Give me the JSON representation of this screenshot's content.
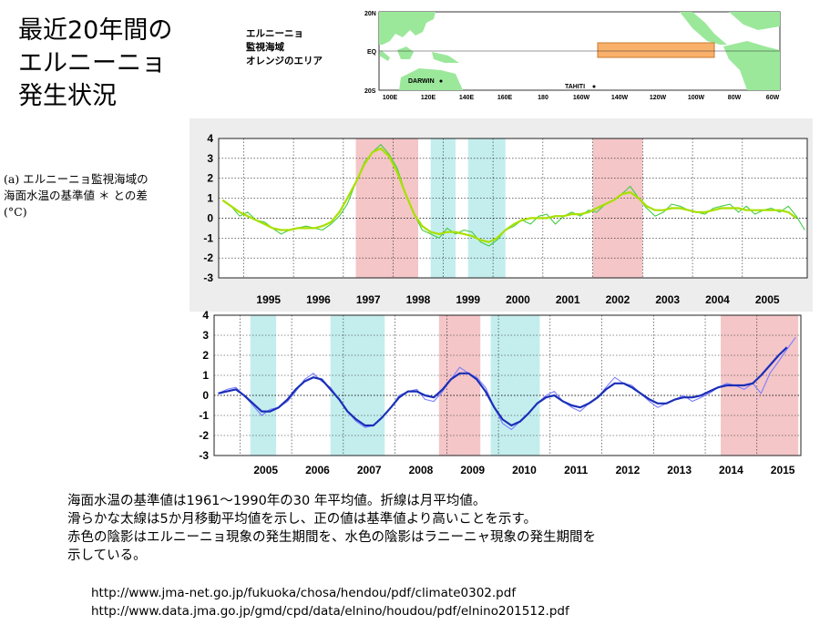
{
  "title": {
    "line1": "最近20年間の",
    "line2": "エルニーニョ",
    "line3": "発生状況"
  },
  "map": {
    "caption_line1": "エルニーニョ",
    "caption_line2": "監視海域",
    "caption_line3": "オレンジのエリア",
    "lat_labels": [
      "20N",
      "EQ",
      "20S"
    ],
    "lon_labels": [
      "100E",
      "120E",
      "140E",
      "160E",
      "180",
      "160W",
      "140W",
      "120W",
      "100W",
      "80W",
      "60W"
    ],
    "place_darwin": "DARWIN",
    "place_tahiti": "TAHITI",
    "region_color": "#f9b06a",
    "land_color": "#9be89b"
  },
  "ylabel": {
    "line1": "(a) エルニーニョ監視海域の",
    "line2": "海面水温の基準値 ＊ との差",
    "line3": "(°C)"
  },
  "chart_data": [
    {
      "type": "line",
      "ylim": [
        -3,
        4
      ],
      "xlim": [
        1994.5,
        2006.3
      ],
      "yticks": [
        "4",
        "3",
        "2",
        "1",
        "0",
        "-1",
        "-2",
        "-3"
      ],
      "xtick_labels": [
        "1995",
        "1996",
        "1997",
        "1998",
        "1999",
        "2000",
        "2001",
        "2002",
        "2003",
        "2004",
        "2005"
      ],
      "grid": true,
      "line_color": "#a8e000",
      "shading": [
        {
          "start": 1997.25,
          "end": 1998.5,
          "phase": "El Niño",
          "color": "#f4c6c8"
        },
        {
          "start": 1998.75,
          "end": 1999.25,
          "phase": "La Niña",
          "color": "#c4eeee"
        },
        {
          "start": 1999.5,
          "end": 2000.25,
          "phase": "La Niña",
          "color": "#c4eeee"
        },
        {
          "start": 2002.0,
          "end": 2003.0,
          "phase": "El Niño",
          "color": "#f4c6c8"
        }
      ],
      "series": [
        {
          "role": "monthly",
          "color": "#44cc44",
          "x": [
            1994.58,
            1994.75,
            1994.92,
            1995.08,
            1995.25,
            1995.42,
            1995.58,
            1995.75,
            1995.92,
            1996.08,
            1996.25,
            1996.42,
            1996.58,
            1996.75,
            1996.92,
            1997.08,
            1997.25,
            1997.42,
            1997.58,
            1997.75,
            1997.92,
            1998.08,
            1998.25,
            1998.42,
            1998.58,
            1998.75,
            1998.92,
            1999.08,
            1999.25,
            1999.42,
            1999.58,
            1999.75,
            1999.92,
            2000.08,
            2000.25,
            2000.42,
            2000.58,
            2000.75,
            2000.92,
            2001.08,
            2001.25,
            2001.42,
            2001.58,
            2001.75,
            2001.92,
            2002.08,
            2002.25,
            2002.42,
            2002.58,
            2002.75,
            2002.92,
            2003.08,
            2003.25,
            2003.42,
            2003.58,
            2003.75,
            2003.92,
            2004.08,
            2004.25,
            2004.42,
            2004.58,
            2004.75,
            2004.92,
            2005.08,
            2005.25,
            2005.42,
            2005.58,
            2005.75,
            2005.92,
            2006.08,
            2006.25
          ],
          "values": [
            0.9,
            0.6,
            0.1,
            0.3,
            -0.1,
            -0.2,
            -0.5,
            -0.8,
            -0.6,
            -0.5,
            -0.4,
            -0.5,
            -0.6,
            -0.3,
            0.1,
            0.7,
            1.8,
            2.8,
            3.3,
            3.7,
            3.2,
            2.5,
            1.2,
            0.2,
            -0.6,
            -0.8,
            -1.0,
            -0.5,
            -0.8,
            -0.6,
            -0.7,
            -1.2,
            -1.4,
            -1.1,
            -0.6,
            -0.4,
            -0.1,
            -0.3,
            0.1,
            0.2,
            -0.3,
            0.1,
            0.3,
            0.1,
            0.4,
            0.3,
            0.7,
            0.9,
            1.2,
            1.6,
            1.0,
            0.5,
            0.1,
            0.3,
            0.7,
            0.6,
            0.4,
            0.3,
            0.2,
            0.5,
            0.6,
            0.7,
            0.3,
            0.6,
            0.2,
            0.4,
            0.5,
            0.3,
            0.6,
            0.1,
            -0.6
          ]
        },
        {
          "role": "5-month running mean",
          "color": "#a8e000",
          "x": [
            1994.58,
            1994.75,
            1994.92,
            1995.08,
            1995.25,
            1995.42,
            1995.58,
            1995.75,
            1995.92,
            1996.08,
            1996.25,
            1996.42,
            1996.58,
            1996.75,
            1996.92,
            1997.08,
            1997.25,
            1997.42,
            1997.58,
            1997.75,
            1997.92,
            1998.08,
            1998.25,
            1998.42,
            1998.58,
            1998.75,
            1998.92,
            1999.08,
            1999.25,
            1999.42,
            1999.58,
            1999.75,
            1999.92,
            2000.08,
            2000.25,
            2000.42,
            2000.58,
            2000.75,
            2000.92,
            2001.08,
            2001.25,
            2001.42,
            2001.58,
            2001.75,
            2001.92,
            2002.08,
            2002.25,
            2002.42,
            2002.58,
            2002.75,
            2002.92,
            2003.08,
            2003.25,
            2003.42,
            2003.58,
            2003.75,
            2003.92,
            2004.08,
            2004.25,
            2004.42,
            2004.58,
            2004.75,
            2004.92,
            2005.08,
            2005.25,
            2005.42,
            2005.58,
            2005.75,
            2005.92,
            2006.08
          ],
          "values": [
            0.9,
            0.6,
            0.3,
            0.1,
            -0.1,
            -0.3,
            -0.5,
            -0.6,
            -0.6,
            -0.5,
            -0.5,
            -0.5,
            -0.4,
            -0.2,
            0.3,
            1.0,
            1.8,
            2.7,
            3.3,
            3.5,
            3.1,
            2.3,
            1.2,
            0.2,
            -0.4,
            -0.7,
            -0.8,
            -0.7,
            -0.7,
            -0.8,
            -0.9,
            -1.1,
            -1.2,
            -1.0,
            -0.6,
            -0.3,
            -0.1,
            0.0,
            0.0,
            0.0,
            0.1,
            0.1,
            0.2,
            0.2,
            0.3,
            0.5,
            0.7,
            0.9,
            1.2,
            1.3,
            1.0,
            0.6,
            0.4,
            0.4,
            0.5,
            0.5,
            0.4,
            0.3,
            0.3,
            0.4,
            0.5,
            0.5,
            0.5,
            0.4,
            0.4,
            0.4,
            0.4,
            0.4,
            0.3,
            0.0
          ]
        }
      ]
    },
    {
      "type": "line",
      "ylim": [
        -3,
        4
      ],
      "xlim": [
        2004.5,
        2015.85
      ],
      "yticks": [
        "4",
        "3",
        "2",
        "1",
        "0",
        "-1",
        "-2",
        "-3"
      ],
      "xtick_labels": [
        "2005",
        "2006",
        "2007",
        "2008",
        "2009",
        "2010",
        "2011",
        "2012",
        "2013",
        "2014",
        "2015"
      ],
      "grid": true,
      "shading": [
        {
          "start": 2005.2,
          "end": 2005.7,
          "phase": "La Niña",
          "color": "#c4eeee"
        },
        {
          "start": 2006.75,
          "end": 2007.8,
          "phase": "La Niña",
          "color": "#c4eeee"
        },
        {
          "start": 2008.85,
          "end": 2009.65,
          "phase": "El Niño",
          "color": "#f4c6c8"
        },
        {
          "start": 2009.85,
          "end": 2010.8,
          "phase": "La Niña",
          "color": "#c4eeee"
        },
        {
          "start": 2014.3,
          "end": 2015.8,
          "phase": "El Niño",
          "color": "#f4c6c8"
        }
      ],
      "series": [
        {
          "role": "monthly",
          "color": "#7b7bff",
          "x": [
            2004.58,
            2004.75,
            2004.92,
            2005.08,
            2005.25,
            2005.42,
            2005.58,
            2005.75,
            2005.92,
            2006.08,
            2006.25,
            2006.42,
            2006.58,
            2006.75,
            2006.92,
            2007.08,
            2007.25,
            2007.42,
            2007.58,
            2007.75,
            2007.92,
            2008.08,
            2008.25,
            2008.42,
            2008.58,
            2008.75,
            2008.92,
            2009.08,
            2009.25,
            2009.42,
            2009.58,
            2009.75,
            2009.92,
            2010.08,
            2010.25,
            2010.42,
            2010.58,
            2010.75,
            2010.92,
            2011.08,
            2011.25,
            2011.42,
            2011.58,
            2011.75,
            2011.92,
            2012.08,
            2012.25,
            2012.42,
            2012.58,
            2012.75,
            2012.92,
            2013.08,
            2013.25,
            2013.42,
            2013.58,
            2013.75,
            2013.92,
            2014.08,
            2014.25,
            2014.42,
            2014.58,
            2014.75,
            2014.92,
            2015.08,
            2015.25,
            2015.42,
            2015.58,
            2015.75
          ],
          "values": [
            0.1,
            0.3,
            0.4,
            0.0,
            -0.5,
            -1.0,
            -0.7,
            -0.6,
            -0.3,
            0.2,
            0.8,
            1.1,
            0.7,
            0.4,
            -0.2,
            -0.8,
            -1.3,
            -1.6,
            -1.5,
            -1.1,
            -0.6,
            0.0,
            0.2,
            0.3,
            -0.2,
            -0.3,
            0.2,
            0.8,
            1.4,
            1.1,
            0.9,
            0.4,
            -0.6,
            -1.4,
            -1.7,
            -1.3,
            -0.9,
            -0.4,
            0.0,
            0.2,
            -0.3,
            -0.6,
            -0.8,
            -0.4,
            -0.1,
            0.4,
            0.9,
            0.6,
            0.5,
            0.1,
            -0.3,
            -0.6,
            -0.4,
            -0.2,
            0.0,
            -0.3,
            -0.1,
            0.1,
            0.4,
            0.6,
            0.5,
            0.3,
            0.6,
            0.1,
            1.1,
            1.7,
            2.3,
            2.9
          ]
        },
        {
          "role": "5-month running mean",
          "color": "#1a2fb8",
          "x": [
            2004.58,
            2004.75,
            2004.92,
            2005.08,
            2005.25,
            2005.42,
            2005.58,
            2005.75,
            2005.92,
            2006.08,
            2006.25,
            2006.42,
            2006.58,
            2006.75,
            2006.92,
            2007.08,
            2007.25,
            2007.42,
            2007.58,
            2007.75,
            2007.92,
            2008.08,
            2008.25,
            2008.42,
            2008.58,
            2008.75,
            2008.92,
            2009.08,
            2009.25,
            2009.42,
            2009.58,
            2009.75,
            2009.92,
            2010.08,
            2010.25,
            2010.42,
            2010.58,
            2010.75,
            2010.92,
            2011.08,
            2011.25,
            2011.42,
            2011.58,
            2011.75,
            2011.92,
            2012.08,
            2012.25,
            2012.42,
            2012.58,
            2012.75,
            2012.92,
            2013.08,
            2013.25,
            2013.42,
            2013.58,
            2013.75,
            2013.92,
            2014.08,
            2014.25,
            2014.42,
            2014.58,
            2014.75,
            2014.92,
            2015.08,
            2015.25,
            2015.42,
            2015.58
          ],
          "values": [
            0.1,
            0.2,
            0.3,
            0.0,
            -0.4,
            -0.8,
            -0.8,
            -0.6,
            -0.2,
            0.3,
            0.7,
            0.9,
            0.8,
            0.3,
            -0.2,
            -0.8,
            -1.2,
            -1.5,
            -1.5,
            -1.1,
            -0.6,
            -0.1,
            0.2,
            0.2,
            0.0,
            -0.1,
            0.3,
            0.8,
            1.1,
            1.1,
            0.8,
            0.2,
            -0.6,
            -1.2,
            -1.5,
            -1.3,
            -0.9,
            -0.4,
            -0.1,
            0.0,
            -0.3,
            -0.5,
            -0.6,
            -0.4,
            -0.1,
            0.3,
            0.6,
            0.6,
            0.4,
            0.1,
            -0.2,
            -0.4,
            -0.4,
            -0.2,
            -0.1,
            -0.1,
            0.0,
            0.2,
            0.4,
            0.5,
            0.5,
            0.5,
            0.6,
            1.0,
            1.5,
            2.0,
            2.4
          ]
        }
      ]
    }
  ],
  "notes": {
    "line1": "海面水温の基準値は1961～1990年の30 年平均値。折線は月平均値。",
    "line2": "滑らかな太線は5か月移動平均値を示し、正の値は基準値より高いことを示す。",
    "line3": "赤色の陰影はエルニーニョ現象の発生期間を、水色の陰影はラニーニャ現象の発生期間を",
    "line4": "示している。"
  },
  "sources": [
    "http://www.jma-net.go.jp/fukuoka/chosa/hendou/pdf/climate0302.pdf",
    "http://www.data.jma.go.jp/gmd/cpd/data/elnino/houdou/pdf/elnino201512.pdf"
  ]
}
